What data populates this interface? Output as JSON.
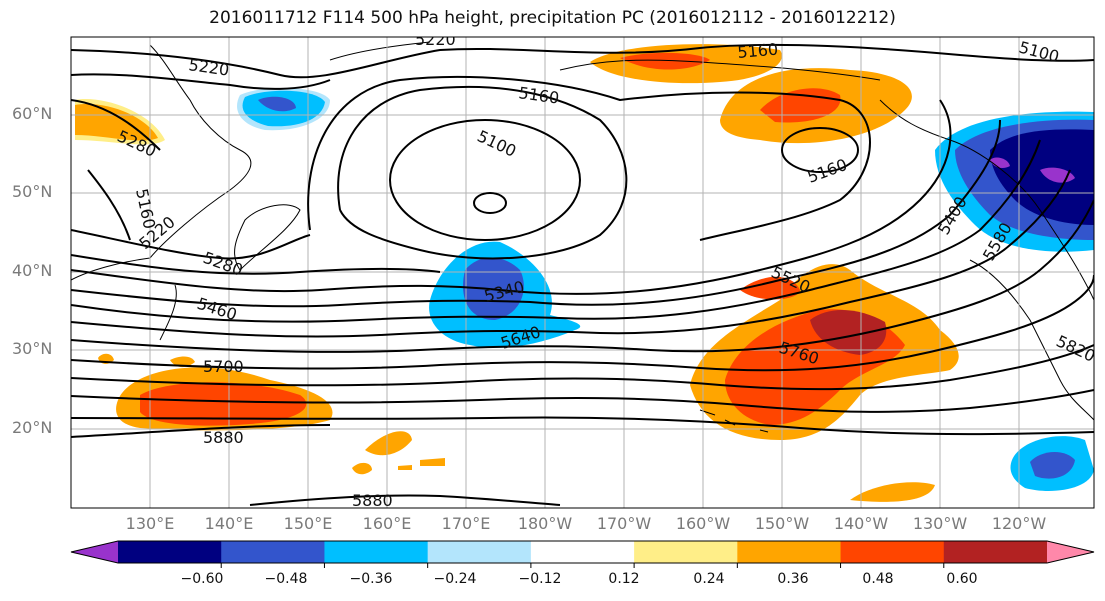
{
  "title": "2016011712 F114 500 hPa height, precipitation PC (2016012112 - 2016012212)",
  "latitude_labels": [
    "60°N",
    "50°N",
    "40°N",
    "30°N",
    "20°N"
  ],
  "longitude_labels": [
    "130°E",
    "140°E",
    "150°E",
    "160°E",
    "170°E",
    "180°W",
    "170°W",
    "160°W",
    "150°W",
    "140°W",
    "130°W",
    "120°W"
  ],
  "contour_labels": [
    "5220",
    "5220",
    "5280",
    "5160",
    "5220",
    "5280",
    "5460",
    "5700",
    "5880",
    "5880",
    "5100",
    "5160",
    "5340",
    "5640",
    "5160",
    "5160",
    "5520",
    "5760",
    "5400",
    "5580",
    "5100",
    "5820"
  ],
  "colorbar": {
    "ticks": [
      "−0.60",
      "−0.48",
      "−0.36",
      "−0.24",
      "−0.12",
      "0.12",
      "0.24",
      "0.36",
      "0.48",
      "0.60"
    ],
    "colors": [
      "#9933cc",
      "#000080",
      "#3355cc",
      "#00bfff",
      "#b3e5fc",
      "#ffffff",
      "#ffee88",
      "#ffa500",
      "#ff4500",
      "#b22222",
      "#ff88aa"
    ]
  }
}
